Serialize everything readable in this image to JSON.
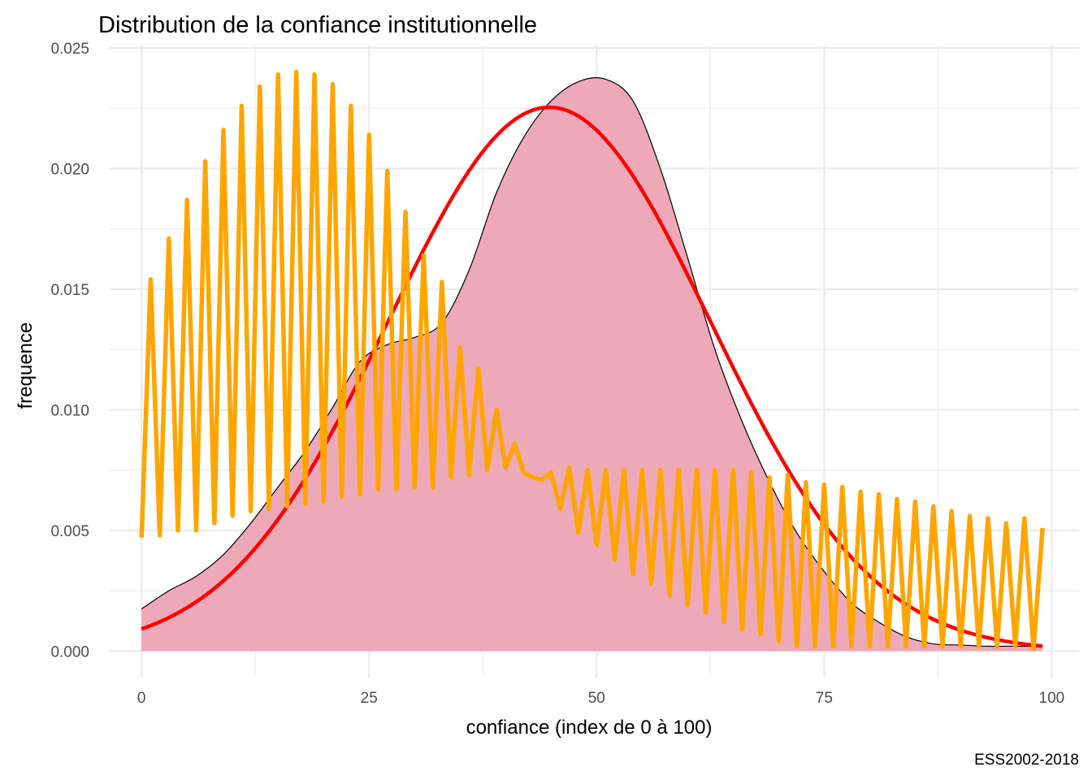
{
  "chart_data": {
    "type": "area",
    "title": "Distribution de la confiance institutionnelle",
    "xlabel": "confiance (index de 0 à 100)",
    "ylabel": "frequence",
    "caption": "ESS2002-2018",
    "xlim": [
      -3.5,
      103
    ],
    "ylim": [
      -0.0011,
      0.0251
    ],
    "x_ticks": [
      0,
      25,
      50,
      75,
      100
    ],
    "x_tick_labels": [
      "0",
      "25",
      "50",
      "75",
      "100"
    ],
    "y_ticks": [
      0,
      0.005,
      0.01,
      0.015,
      0.02,
      0.025
    ],
    "y_tick_labels": [
      "0.000",
      "0.005",
      "0.010",
      "0.015",
      "0.020",
      "0.025"
    ],
    "grid": true,
    "colors": {
      "density_fill": "#EDA9B7",
      "density_line": "#000000",
      "normal_curve": "#FF0000",
      "histogram_line": "#FFA500",
      "grid": "#EBEBEB"
    },
    "series": [
      {
        "kind": "density-area",
        "x": [
          0,
          3,
          6,
          9,
          12,
          15,
          18,
          21,
          24,
          27,
          30,
          33,
          36,
          39,
          42,
          45,
          48,
          51,
          54,
          57,
          60,
          63,
          66,
          69,
          72,
          75,
          78,
          81,
          84,
          87,
          90,
          93,
          96,
          99
        ],
        "values": [
          0.00175,
          0.0025,
          0.0031,
          0.004,
          0.0053,
          0.0068,
          0.0083,
          0.0101,
          0.012,
          0.0127,
          0.013,
          0.0136,
          0.0158,
          0.019,
          0.0213,
          0.0228,
          0.0236,
          0.0237,
          0.0228,
          0.02,
          0.0163,
          0.0125,
          0.0095,
          0.007,
          0.0049,
          0.0033,
          0.002,
          0.0012,
          0.0006,
          0.0003,
          0.00025,
          0.0002,
          0.0002,
          0.0002
        ]
      },
      {
        "kind": "normal-curve",
        "mean": 44.8,
        "sd": 17.7
      },
      {
        "kind": "histogram-line",
        "x": [
          0,
          1,
          2,
          3,
          4,
          5,
          6,
          7,
          8,
          9,
          10,
          11,
          12,
          13,
          14,
          15,
          16,
          17,
          18,
          19,
          20,
          21,
          22,
          23,
          24,
          25,
          26,
          27,
          28,
          29,
          30,
          31,
          32,
          33,
          34,
          35,
          36,
          37,
          38,
          39,
          40,
          41,
          42,
          43,
          44,
          45,
          46,
          47,
          48,
          49,
          50,
          51,
          52,
          53,
          54,
          55,
          56,
          57,
          58,
          59,
          60,
          61,
          62,
          63,
          64,
          65,
          66,
          67,
          68,
          69,
          70,
          71,
          72,
          73,
          74,
          75,
          76,
          77,
          78,
          79,
          80,
          81,
          82,
          83,
          84,
          85,
          86,
          87,
          88,
          89,
          90,
          91,
          92,
          93,
          94,
          95,
          96,
          97,
          98,
          99
        ],
        "values": [
          0.0047,
          0.0154,
          0.0048,
          0.0171,
          0.005,
          0.0187,
          0.005,
          0.0203,
          0.0053,
          0.0216,
          0.0056,
          0.0226,
          0.0058,
          0.0234,
          0.0059,
          0.0239,
          0.006,
          0.024,
          0.0061,
          0.0239,
          0.0062,
          0.0235,
          0.0064,
          0.0226,
          0.0065,
          0.0214,
          0.0067,
          0.0199,
          0.0067,
          0.0182,
          0.0068,
          0.0164,
          0.0068,
          0.0153,
          0.0072,
          0.0126,
          0.0073,
          0.0117,
          0.0075,
          0.01,
          0.0076,
          0.0086,
          0.0074,
          0.0072,
          0.0071,
          0.0074,
          0.0059,
          0.0076,
          0.0049,
          0.0075,
          0.0044,
          0.0075,
          0.0038,
          0.0075,
          0.0032,
          0.0075,
          0.0028,
          0.0075,
          0.0023,
          0.0075,
          0.0019,
          0.0075,
          0.0016,
          0.0075,
          0.0012,
          0.0075,
          0.0009,
          0.0074,
          0.0007,
          0.0072,
          0.0004,
          0.0073,
          0.0002,
          0.007,
          0.0002,
          0.0069,
          0.0002,
          0.0068,
          0.0002,
          0.0066,
          0.0002,
          0.0065,
          0.0002,
          0.0063,
          0.0002,
          0.0062,
          0.0002,
          0.006,
          0.0002,
          0.0058,
          0.0002,
          0.0056,
          0.0002,
          0.0055,
          0.0002,
          0.0053,
          0.0002,
          0.0055,
          0.0001,
          0.0051
        ]
      }
    ]
  }
}
